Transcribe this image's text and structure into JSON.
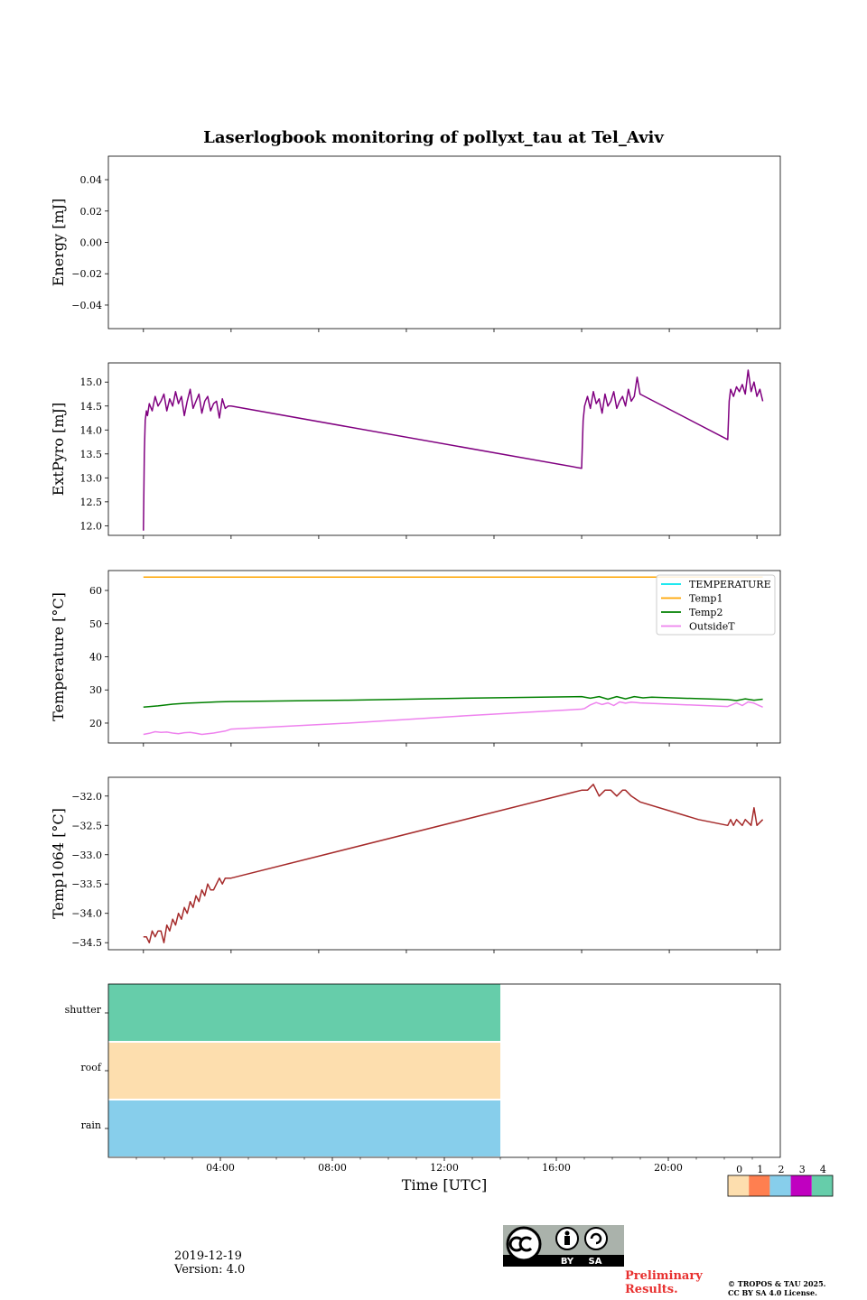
{
  "chart_data": [
    {
      "type": "line",
      "title": "Laserlogbook monitoring of pollyxt_tau at Tel_Aviv",
      "ylabel": "Energy [mJ]",
      "ylim": [
        -0.055,
        0.055
      ],
      "yticks": [
        0.04,
        0.02,
        0.0,
        -0.02,
        -0.04
      ],
      "ytick_labels": [
        "0.04",
        "0.02",
        "0.00",
        "−0.02",
        "−0.04"
      ],
      "series": []
    },
    {
      "type": "line",
      "ylabel": "ExtPyro [mJ]",
      "ylim": [
        11.8,
        15.4
      ],
      "yticks": [
        15.0,
        14.5,
        14.0,
        13.5,
        13.0,
        12.5,
        12.0
      ],
      "ytick_labels": [
        "15.0",
        "14.5",
        "14.0",
        "13.5",
        "13.0",
        "12.5",
        "12.0"
      ],
      "series": [
        {
          "color": "#800080",
          "x": [
            1.0,
            1.03,
            1.06,
            1.1,
            1.14,
            1.2,
            1.3,
            1.4,
            1.5,
            1.6,
            1.7,
            1.8,
            1.9,
            2.0,
            2.1,
            2.2,
            2.3,
            2.4,
            2.5,
            2.6,
            2.7,
            2.8,
            2.9,
            3.0,
            3.1,
            3.2,
            3.3,
            3.4,
            3.5,
            3.6,
            3.7,
            3.8,
            3.9,
            4.0,
            16.0,
            16.05,
            16.1,
            16.2,
            16.3,
            16.4,
            16.5,
            16.6,
            16.7,
            16.8,
            16.9,
            17.0,
            17.1,
            17.2,
            17.3,
            17.4,
            17.5,
            17.6,
            17.7,
            17.8,
            17.9,
            18.0,
            21.0,
            21.05,
            21.1,
            21.2,
            21.3,
            21.4,
            21.5,
            21.6,
            21.7,
            21.8,
            21.9,
            22.0,
            22.1,
            22.2
          ],
          "y": [
            11.9,
            13.5,
            14.2,
            14.4,
            14.3,
            14.55,
            14.4,
            14.7,
            14.5,
            14.6,
            14.75,
            14.4,
            14.65,
            14.5,
            14.8,
            14.55,
            14.7,
            14.3,
            14.6,
            14.85,
            14.45,
            14.6,
            14.75,
            14.35,
            14.6,
            14.7,
            14.4,
            14.55,
            14.6,
            14.25,
            14.65,
            14.45,
            14.5,
            14.5,
            13.2,
            14.2,
            14.5,
            14.7,
            14.45,
            14.8,
            14.55,
            14.65,
            14.35,
            14.75,
            14.5,
            14.6,
            14.8,
            14.45,
            14.6,
            14.7,
            14.5,
            14.85,
            14.6,
            14.7,
            15.1,
            14.75,
            13.8,
            14.6,
            14.85,
            14.7,
            14.9,
            14.8,
            14.95,
            14.75,
            15.25,
            14.8,
            15.0,
            14.7,
            14.85,
            14.6
          ]
        }
      ]
    },
    {
      "type": "line",
      "ylabel": "Temperature [°C]",
      "ylim": [
        14,
        66
      ],
      "yticks": [
        60,
        50,
        40,
        30,
        20
      ],
      "ytick_labels": [
        "60",
        "50",
        "40",
        "30",
        "20"
      ],
      "legend": "top-right",
      "series": [
        {
          "name": "TEMPERATURE",
          "color": "#00e5ee",
          "x": [],
          "y": []
        },
        {
          "name": "Temp1",
          "color": "#ffa500",
          "x": [
            1.0,
            22.2
          ],
          "y": [
            64,
            64
          ]
        },
        {
          "name": "Temp2",
          "color": "#008000",
          "x": [
            1.0,
            1.5,
            2.0,
            2.5,
            3.0,
            3.5,
            4.0,
            8.0,
            12.0,
            16.0,
            16.3,
            16.6,
            16.9,
            17.2,
            17.5,
            17.8,
            18.1,
            18.4,
            21.0,
            21.3,
            21.6,
            21.9,
            22.2
          ],
          "y": [
            24.8,
            25.2,
            25.7,
            26.0,
            26.2,
            26.4,
            26.5,
            26.9,
            27.5,
            28.0,
            27.5,
            28.0,
            27.2,
            28.0,
            27.3,
            28.0,
            27.6,
            27.8,
            27.1,
            26.8,
            27.3,
            26.9,
            27.2
          ]
        },
        {
          "name": "OutsideT",
          "color": "#ee82ee",
          "x": [
            1.0,
            1.2,
            1.4,
            1.6,
            1.8,
            2.0,
            2.2,
            2.4,
            2.6,
            2.8,
            3.0,
            3.2,
            3.4,
            3.6,
            3.8,
            4.0,
            8.0,
            12.0,
            16.0,
            16.1,
            16.3,
            16.5,
            16.7,
            16.9,
            17.1,
            17.3,
            17.5,
            17.7,
            18.0,
            21.0,
            21.3,
            21.5,
            21.7,
            21.9,
            22.2
          ],
          "y": [
            16.6,
            16.9,
            17.4,
            17.2,
            17.3,
            17.0,
            16.8,
            17.1,
            17.2,
            16.9,
            16.6,
            16.8,
            17.0,
            17.3,
            17.6,
            18.2,
            20.0,
            22.2,
            24.2,
            24.4,
            25.5,
            26.2,
            25.6,
            26.1,
            25.3,
            26.4,
            26.0,
            26.3,
            26.1,
            25.0,
            26.1,
            25.3,
            26.4,
            26.0,
            24.8
          ]
        }
      ]
    },
    {
      "type": "line",
      "ylabel": "Temp1064 [°C]",
      "ylim": [
        -34.62,
        -31.68
      ],
      "yticks": [
        -32.0,
        -32.5,
        -33.0,
        -33.5,
        -34.0,
        -34.5
      ],
      "ytick_labels": [
        "−32.0",
        "−32.5",
        "−33.0",
        "−33.5",
        "−34.0",
        "−34.5"
      ],
      "series": [
        {
          "color": "#a52a2a",
          "x": [
            1.0,
            1.1,
            1.2,
            1.3,
            1.4,
            1.5,
            1.6,
            1.7,
            1.8,
            1.9,
            2.0,
            2.1,
            2.2,
            2.3,
            2.4,
            2.5,
            2.6,
            2.7,
            2.8,
            2.9,
            3.0,
            3.1,
            3.2,
            3.3,
            3.4,
            3.5,
            3.6,
            3.7,
            3.8,
            3.9,
            4.0,
            16.0,
            16.2,
            16.4,
            16.5,
            16.6,
            16.8,
            17.0,
            17.2,
            17.4,
            17.5,
            17.7,
            18.0,
            20.0,
            21.0,
            21.1,
            21.2,
            21.3,
            21.5,
            21.6,
            21.8,
            21.9,
            22.0,
            22.2
          ],
          "y": [
            -34.4,
            -34.4,
            -34.5,
            -34.3,
            -34.4,
            -34.3,
            -34.3,
            -34.5,
            -34.2,
            -34.3,
            -34.1,
            -34.2,
            -34.0,
            -34.1,
            -33.9,
            -34.0,
            -33.8,
            -33.9,
            -33.7,
            -33.8,
            -33.6,
            -33.7,
            -33.5,
            -33.6,
            -33.6,
            -33.5,
            -33.4,
            -33.5,
            -33.4,
            -33.4,
            -33.4,
            -31.9,
            -31.9,
            -31.8,
            -31.9,
            -32.0,
            -31.9,
            -31.9,
            -32.0,
            -31.9,
            -31.9,
            -32.0,
            -32.1,
            -32.4,
            -32.5,
            -32.4,
            -32.5,
            -32.4,
            -32.5,
            -32.4,
            -32.5,
            -32.2,
            -32.5,
            -32.4
          ]
        }
      ]
    },
    {
      "type": "heatmap",
      "xlabel": "Time [UTC]",
      "xlim": [
        0,
        24
      ],
      "xticks": [
        4,
        8,
        12,
        16,
        20
      ],
      "xtick_labels": [
        "04:00",
        "08:00",
        "12:00",
        "16:00",
        "20:00"
      ],
      "rows": [
        "shutter",
        "roof",
        "rain"
      ],
      "segments": [
        {
          "row": "shutter",
          "x": [
            0,
            14
          ],
          "value": 4
        },
        {
          "row": "roof",
          "x": [
            0,
            14
          ],
          "value": 0
        },
        {
          "row": "rain",
          "x": [
            0,
            14
          ],
          "value": 2
        }
      ],
      "colorbar": {
        "labels": [
          "0",
          "1",
          "2",
          "3",
          "4"
        ],
        "colors": [
          "#fddeae",
          "#ff7f50",
          "#87ceeb",
          "#c000c0",
          "#66cdaa"
        ]
      }
    }
  ],
  "shared_x": {
    "xlim": [
      -0.2,
      22.8
    ],
    "major_ticks": [
      1,
      4,
      7,
      10,
      13,
      16,
      19,
      22
    ]
  },
  "footer": {
    "date": "2019-12-19",
    "version": "Version: 4.0",
    "preliminary": "Preliminary Results.",
    "copyright_line1": "© TROPOS & TAU 2025.",
    "copyright_line2": "CC BY SA 4.0 License.",
    "cc_by": "BY",
    "cc_sa": "SA"
  }
}
